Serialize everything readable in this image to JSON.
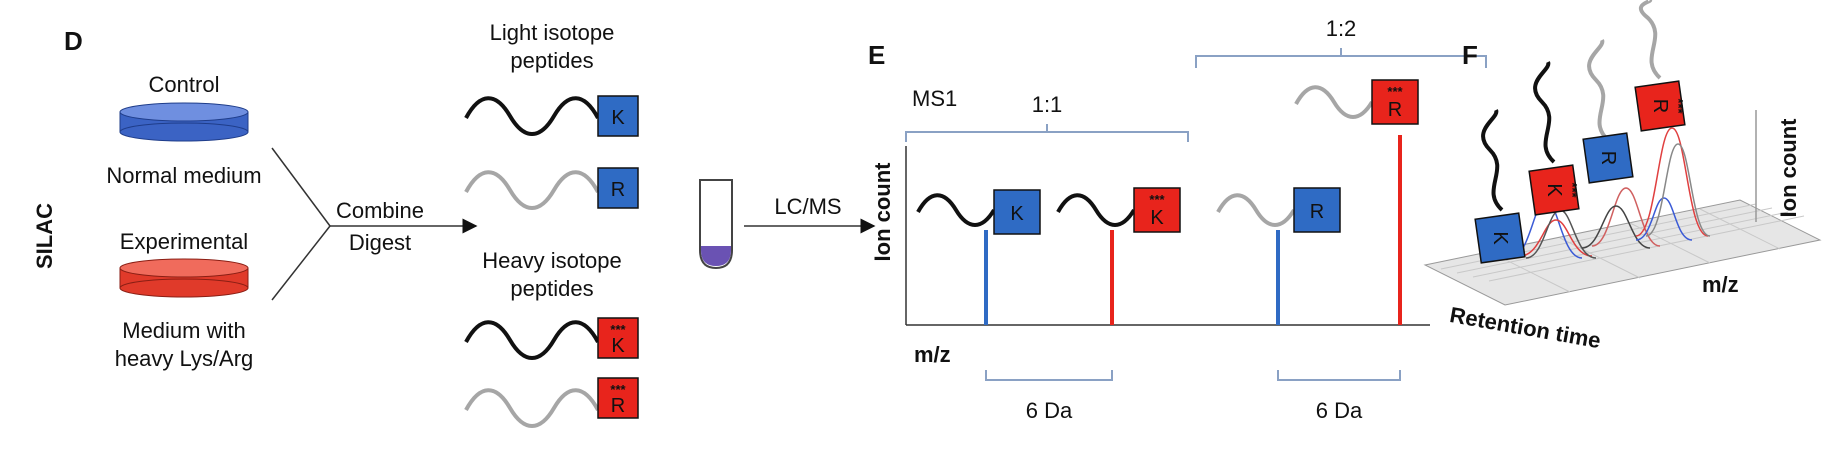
{
  "panels": {
    "d": "D",
    "e": "E",
    "f": "F"
  },
  "silac": {
    "side_label": "SILAC",
    "control": {
      "title": "Control",
      "medium": "Normal medium",
      "color": "#3b63c4"
    },
    "experimental": {
      "title": "Experimental",
      "medium_line1": "Medium with",
      "medium_line2": "heavy Lys/Arg",
      "color": "#e03a2a"
    },
    "combine_label": "Combine",
    "digest_label": "Digest",
    "light_title_line1": "Light isotope",
    "light_title_line2": "peptides",
    "heavy_title_line1": "Heavy isotope",
    "heavy_title_line2": "peptides",
    "lcms_label": "LC/MS"
  },
  "residues": {
    "k": "K",
    "r": "R",
    "heavy_mark": "***"
  },
  "colors": {
    "light_box": "#2f6bc4",
    "heavy_box": "#e8241c",
    "black_chain": "#111111",
    "grey_chain": "#a6a6a6",
    "tube_liquid": "#6a52b3",
    "bracket": "#8aa1c4"
  },
  "ms": {
    "ms1_label": "MS1",
    "y_axis": "Ion count",
    "x_axis": "m/z",
    "ratio_k": "1:1",
    "ratio_r": "1:2",
    "mass_shift": "6 Da",
    "peak_heights": {
      "k_light": 0.5,
      "k_heavy": 0.5,
      "r_light": 0.5,
      "r_heavy": 1.0
    }
  },
  "three_d": {
    "y_axis": "Ion count",
    "mz_axis": "m/z",
    "time_axis": "Retention time"
  }
}
